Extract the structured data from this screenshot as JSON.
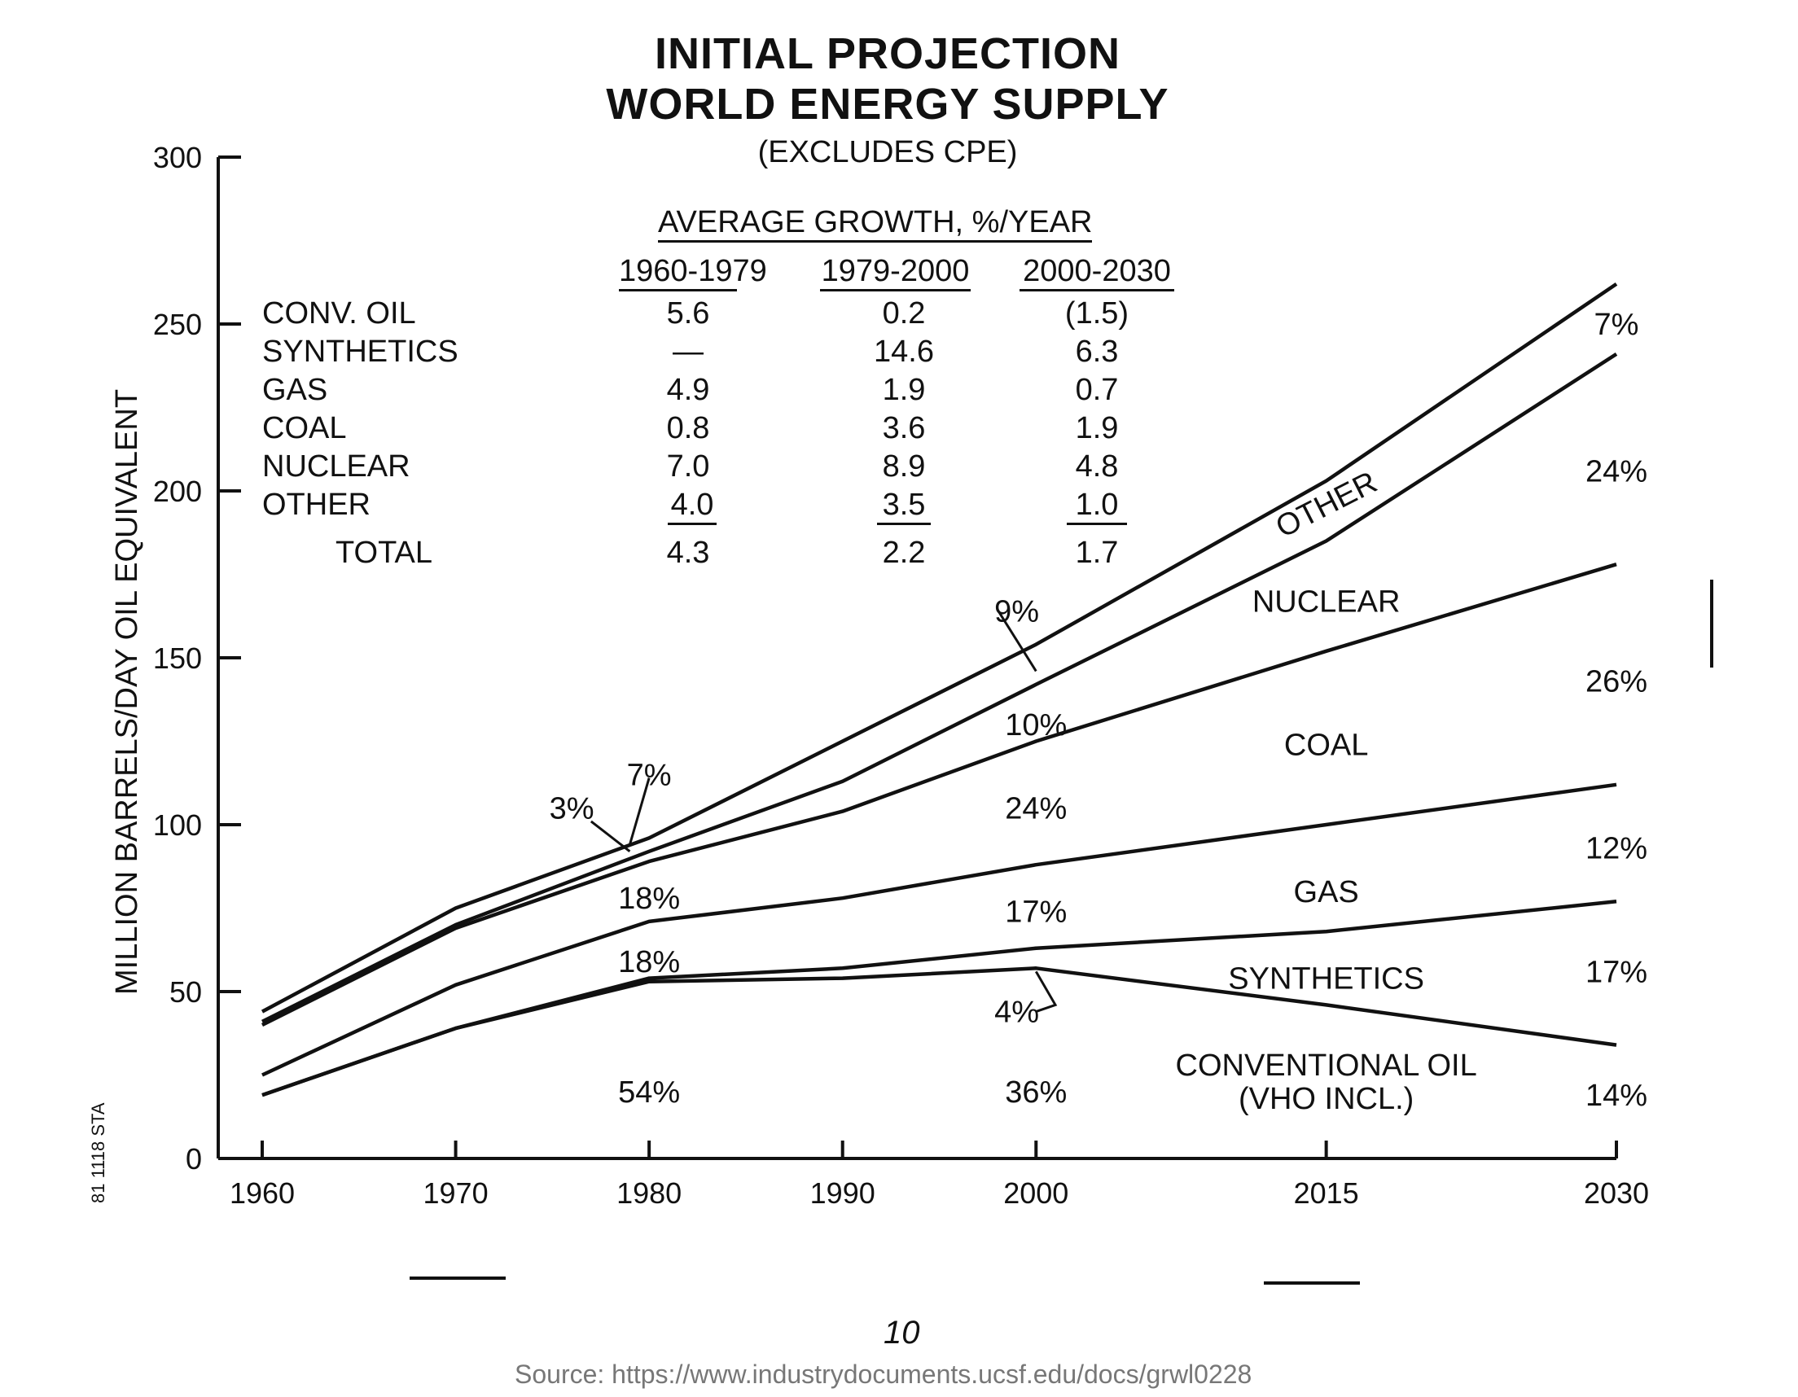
{
  "chart_data": {
    "type": "area",
    "title": "INITIAL PROJECTION",
    "title2": "WORLD ENERGY SUPPLY",
    "subtitle": "(EXCLUDES CPE)",
    "ylabel": "MILLION BARRELS/DAY OIL EQUIVALENT",
    "xlabel": "",
    "x": [
      1960,
      1970,
      1980,
      1990,
      2000,
      2015,
      2030
    ],
    "x_ticks": [
      "1960",
      "1970",
      "1980",
      "1990",
      "2000",
      "2015",
      "2030"
    ],
    "y_ticks": [
      "0",
      "50",
      "100",
      "150",
      "200",
      "250",
      "300"
    ],
    "ylim": [
      0,
      300
    ],
    "stacked": true,
    "series": [
      {
        "name": "CONVENTIONAL OIL",
        "label_line2": "(VHO INCL.)",
        "values": [
          19,
          39,
          53,
          54,
          57,
          46,
          34
        ]
      },
      {
        "name": "SYNTHETICS",
        "values": [
          19,
          39,
          54,
          57,
          63,
          68,
          77
        ]
      },
      {
        "name": "GAS",
        "values": [
          25,
          52,
          71,
          78,
          88,
          100,
          112
        ]
      },
      {
        "name": "COAL",
        "values": [
          40,
          69,
          89,
          104,
          125,
          152,
          178
        ]
      },
      {
        "name": "NUCLEAR",
        "values": [
          41,
          70,
          92,
          113,
          142,
          185,
          241
        ]
      },
      {
        "name": "OTHER",
        "values": [
          44,
          75,
          96,
          125,
          154,
          203,
          262
        ]
      }
    ],
    "share_labels": [
      {
        "text": "54%",
        "x": 1980,
        "y": 20
      },
      {
        "text": "18%",
        "x": 1980,
        "y": 59
      },
      {
        "text": "18%",
        "x": 1980,
        "y": 78
      },
      {
        "text": "3%",
        "x": 1976,
        "y": 105
      },
      {
        "text": "7%",
        "x": 1980,
        "y": 115
      },
      {
        "text": "36%",
        "x": 2000,
        "y": 20
      },
      {
        "text": "4%",
        "x": 1999,
        "y": 44
      },
      {
        "text": "17%",
        "x": 2000,
        "y": 74
      },
      {
        "text": "24%",
        "x": 2000,
        "y": 105
      },
      {
        "text": "10%",
        "x": 2000,
        "y": 130
      },
      {
        "text": "9%",
        "x": 1999,
        "y": 164
      },
      {
        "text": "14%",
        "x": 2030,
        "y": 19
      },
      {
        "text": "17%",
        "x": 2030,
        "y": 56
      },
      {
        "text": "12%",
        "x": 2030,
        "y": 93
      },
      {
        "text": "26%",
        "x": 2030,
        "y": 143
      },
      {
        "text": "24%",
        "x": 2030,
        "y": 206
      },
      {
        "text": "7%",
        "x": 2030,
        "y": 250
      }
    ],
    "series_labels": [
      {
        "text": "CONVENTIONAL OIL",
        "x": 2015,
        "y": 28
      },
      {
        "text": "(VHO INCL.)",
        "x": 2015,
        "y": 18
      },
      {
        "text": "SYNTHETICS",
        "x": 2015,
        "y": 54
      },
      {
        "text": "GAS",
        "x": 2015,
        "y": 80
      },
      {
        "text": "COAL",
        "x": 2015,
        "y": 124
      },
      {
        "text": "NUCLEAR",
        "x": 2015,
        "y": 167
      },
      {
        "text": "OTHER",
        "x": 2015,
        "y": 196
      }
    ]
  },
  "growth_table": {
    "heading": "AVERAGE GROWTH, %/YEAR",
    "periods": [
      "1960-1979",
      "1979-2000",
      "2000-2030"
    ],
    "rows": [
      {
        "label": "CONV. OIL",
        "values": [
          "5.6",
          "0.2",
          "(1.5)"
        ]
      },
      {
        "label": "SYNTHETICS",
        "values": [
          "—",
          "14.6",
          "6.3"
        ]
      },
      {
        "label": "GAS",
        "values": [
          "4.9",
          "1.9",
          "0.7"
        ]
      },
      {
        "label": "COAL",
        "values": [
          "0.8",
          "3.6",
          "1.9"
        ]
      },
      {
        "label": "NUCLEAR",
        "values": [
          "7.0",
          "8.9",
          "4.8"
        ]
      },
      {
        "label": "OTHER",
        "values": [
          "4.0",
          "3.5",
          "1.0"
        ]
      }
    ],
    "total": {
      "label": "TOTAL",
      "values": [
        "4.3",
        "2.2",
        "1.7"
      ]
    }
  },
  "side_code": "81 1118 STA",
  "page_number": "10",
  "source": "Source: https://www.industrydocuments.ucsf.edu/docs/grwl0228"
}
